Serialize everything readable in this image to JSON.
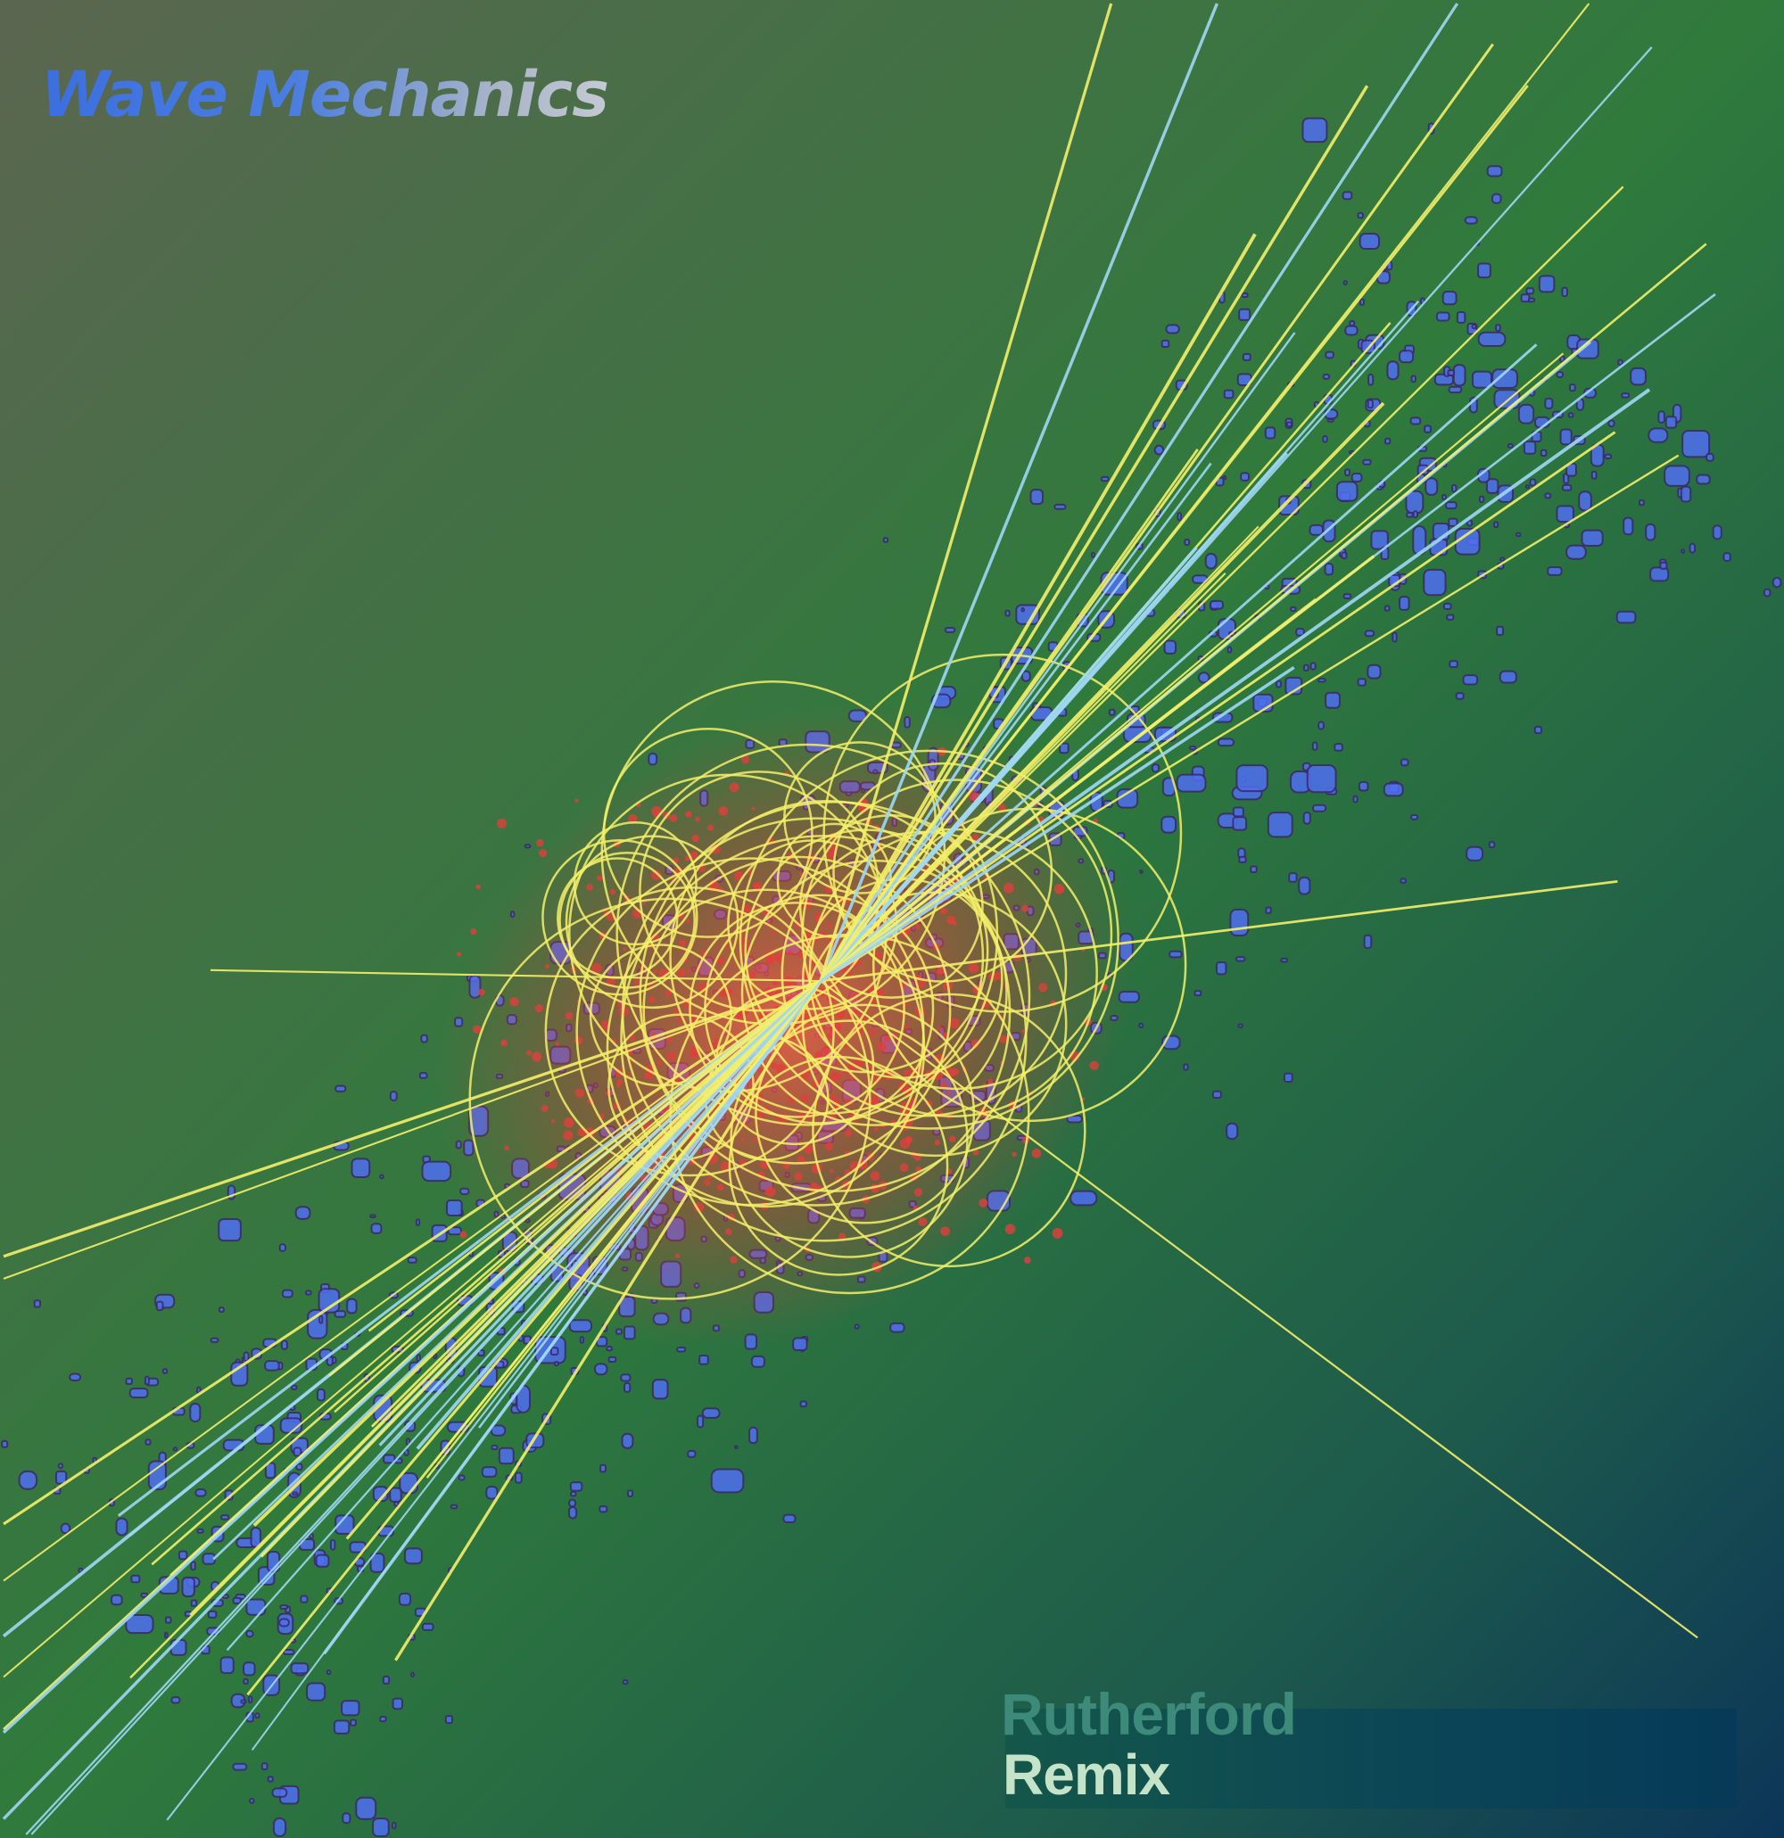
{
  "cover": {
    "title": "Wave Mechanics",
    "artist": "Rutherford",
    "subtitle": "Remix"
  },
  "colors": {
    "background_top": "#5b6650",
    "background_mid": "#2f7a3c",
    "background_bottom": "#0c3558",
    "blobs": "#4f6ef0",
    "tracks_yellow": "#f4f06a",
    "tracks_blue": "#9fd8f5",
    "core_red": "#e0403c"
  }
}
